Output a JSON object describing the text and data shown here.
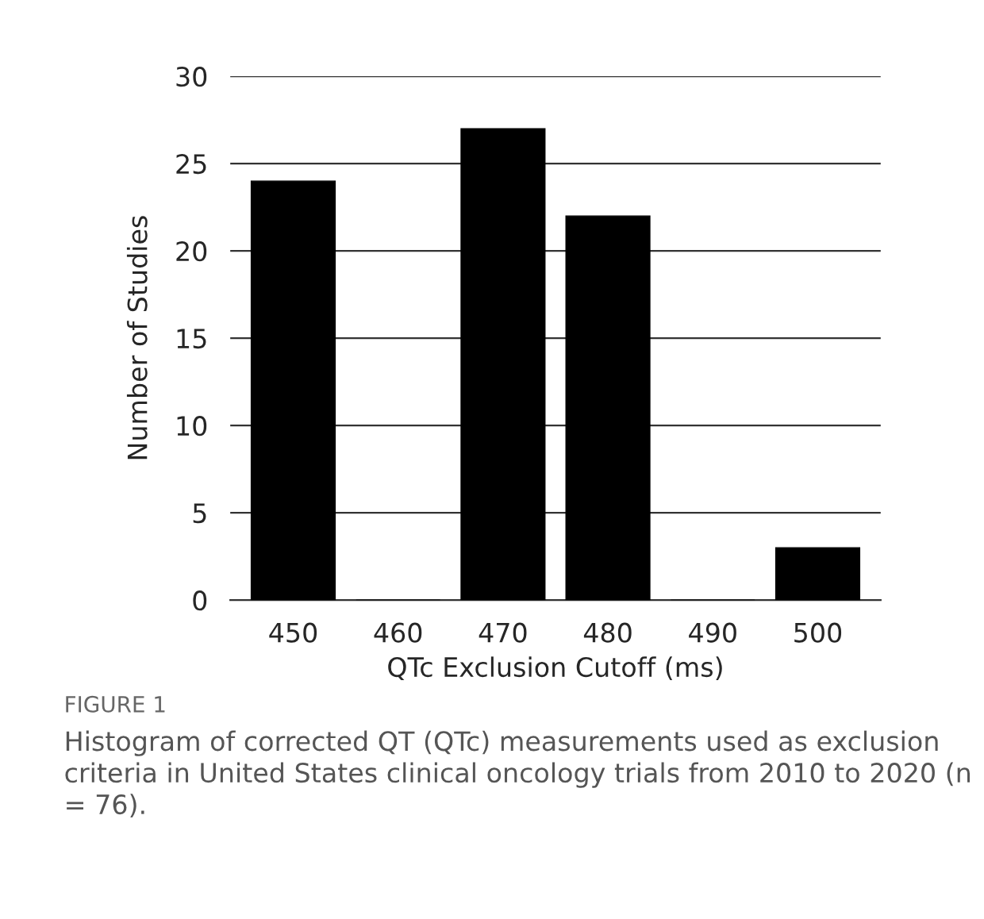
{
  "chart_data": {
    "type": "bar",
    "xlabel": "QTc Exclusion Cutoff (ms)",
    "ylabel": "Number of Studies",
    "categories": [
      "450",
      "460",
      "470",
      "480",
      "490",
      "500"
    ],
    "values": [
      24,
      0,
      27,
      22,
      0,
      3
    ],
    "color": "#000000",
    "ylim": [
      0,
      30
    ],
    "yticks": [
      0,
      5,
      10,
      15,
      20,
      25,
      30
    ],
    "grid": "y",
    "legend": false,
    "annotations": [
      "FIGURE 1",
      "Histogram of corrected QT (QTc) measurements used as exclusion criteria in United States clinical oncology trials from 2010 to 2020 (n = 76)."
    ]
  }
}
